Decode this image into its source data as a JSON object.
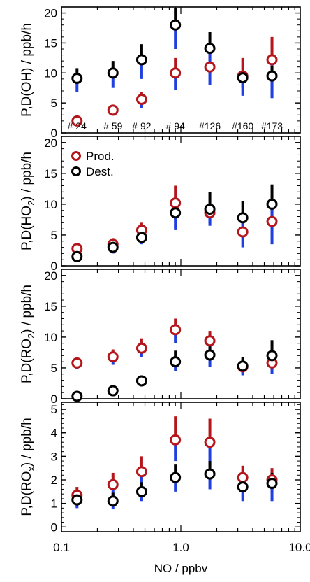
{
  "chart_data": [
    {
      "type": "scatter",
      "ylabel_parts": [
        "P,D(OH) / ppb/h"
      ],
      "ylim": [
        0,
        21
      ],
      "yticks": [
        0,
        5,
        10,
        15,
        20
      ],
      "x": [
        0.135,
        0.27,
        0.47,
        0.9,
        1.75,
        3.3,
        5.8
      ],
      "annotations": [
        "# 24",
        "# 59",
        "# 92",
        "# 94",
        "#126",
        "#160",
        "#173"
      ],
      "series": [
        {
          "name": "Prod.",
          "color": "#b5161b",
          "values": [
            2.0,
            3.8,
            5.6,
            10.0,
            11.0,
            9.5,
            12.2
          ],
          "err_low": [
            1.8,
            3.2,
            4.2,
            7.2,
            8.0,
            7.5,
            6.0
          ],
          "err_high": [
            2.2,
            4.4,
            6.8,
            12.5,
            14.2,
            12.5,
            16.0
          ]
        },
        {
          "name": "Dest.",
          "color": "#000000",
          "values": [
            9.1,
            10.0,
            12.2,
            18.0,
            14.1,
            9.2,
            9.5
          ],
          "err_low": [
            6.8,
            7.5,
            9.0,
            14.0,
            11.0,
            6.2,
            5.8
          ],
          "err_high": [
            10.8,
            12.0,
            14.8,
            20.8,
            16.8,
            10.2,
            11.2
          ]
        }
      ]
    },
    {
      "type": "scatter",
      "ylabel_parts": [
        "P,D(HO",
        "2",
        ") / ppb/h"
      ],
      "ylim": [
        0,
        21
      ],
      "yticks": [
        0,
        5,
        10,
        15,
        20
      ],
      "x": [
        0.135,
        0.27,
        0.47,
        0.9,
        1.75,
        3.3,
        5.8
      ],
      "legend": {
        "position": "top-left",
        "entries": [
          "Prod.",
          "Dest."
        ]
      },
      "series": [
        {
          "name": "Prod.",
          "color": "#b5161b",
          "values": [
            2.8,
            3.5,
            5.8,
            10.2,
            8.6,
            5.5,
            7.2
          ],
          "err_low": [
            2.0,
            2.5,
            4.5,
            7.5,
            6.5,
            3.0,
            3.5
          ],
          "err_high": [
            3.4,
            4.5,
            7.0,
            13.0,
            10.2,
            8.0,
            9.5
          ]
        },
        {
          "name": "Dest.",
          "color": "#000000",
          "values": [
            1.5,
            3.0,
            4.6,
            8.6,
            9.2,
            7.8,
            10.0
          ],
          "err_low": [
            1.0,
            2.0,
            3.5,
            5.8,
            6.8,
            5.0,
            6.2
          ],
          "err_high": [
            2.2,
            4.0,
            6.0,
            10.2,
            12.0,
            10.5,
            13.2
          ]
        }
      ]
    },
    {
      "type": "scatter",
      "ylabel_parts": [
        "P,D(RO",
        "2",
        ") / ppb/h"
      ],
      "ylim": [
        0,
        21
      ],
      "yticks": [
        0,
        5,
        10,
        15,
        20
      ],
      "x": [
        0.135,
        0.27,
        0.47,
        0.9,
        1.75,
        3.3,
        5.8
      ],
      "series": [
        {
          "name": "Prod.",
          "color": "#b5161b",
          "values": [
            5.8,
            6.8,
            8.2,
            11.2,
            9.4,
            5.2,
            5.8
          ],
          "err_low": [
            4.8,
            5.5,
            6.8,
            9.0,
            7.5,
            4.0,
            4.0
          ],
          "err_high": [
            6.8,
            8.0,
            9.8,
            13.0,
            11.0,
            6.5,
            7.5
          ]
        },
        {
          "name": "Dest.",
          "color": "#000000",
          "values": [
            0.4,
            1.3,
            2.9,
            6.0,
            7.1,
            5.3,
            7.0
          ],
          "err_low": [
            0.2,
            0.8,
            2.0,
            4.5,
            5.2,
            3.8,
            5.0
          ],
          "err_high": [
            0.8,
            1.8,
            3.8,
            7.8,
            9.0,
            6.8,
            9.5
          ]
        }
      ]
    },
    {
      "type": "scatter",
      "ylabel_parts": [
        "P,D(RO",
        "x",
        ") / ppb/h"
      ],
      "ylim": [
        -0.2,
        5.3
      ],
      "yticks": [
        0,
        1,
        2,
        3,
        4,
        5
      ],
      "x": [
        0.135,
        0.27,
        0.47,
        0.9,
        1.75,
        3.3,
        5.8
      ],
      "xlabel": "NO / ppbv",
      "xlim": [
        0.1,
        10.0
      ],
      "xticks": [
        "0.1",
        "1.0",
        "10.0"
      ],
      "series": [
        {
          "name": "Prod.",
          "color": "#b5161b",
          "values": [
            1.35,
            1.8,
            2.35,
            3.7,
            3.6,
            2.1,
            2.0
          ],
          "err_low": [
            1.0,
            1.2,
            1.6,
            2.8,
            2.6,
            1.7,
            1.5
          ],
          "err_high": [
            1.7,
            2.3,
            3.0,
            4.7,
            4.6,
            2.6,
            2.5
          ]
        },
        {
          "name": "Dest.",
          "color": "#000000",
          "values": [
            1.15,
            1.1,
            1.5,
            2.1,
            2.25,
            1.7,
            1.85
          ],
          "err_low": [
            0.8,
            0.75,
            1.1,
            1.5,
            1.6,
            1.1,
            1.1
          ],
          "err_high": [
            1.5,
            1.45,
            1.9,
            2.65,
            2.8,
            2.2,
            2.3
          ]
        }
      ]
    }
  ]
}
